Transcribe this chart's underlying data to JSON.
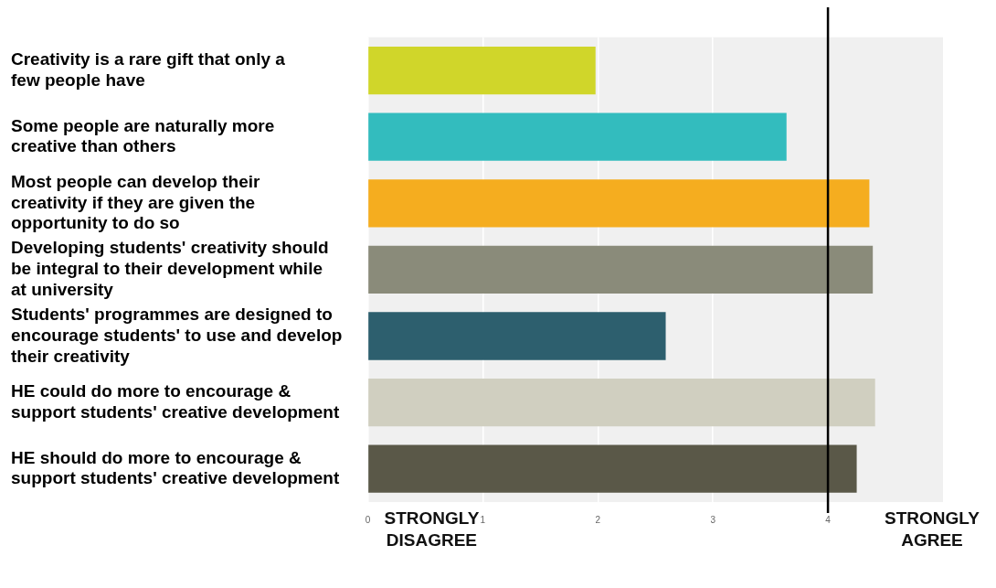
{
  "chart_data": {
    "type": "bar",
    "orientation": "horizontal",
    "categories": [
      "Creativity is a rare gift that only a few people have",
      "Some people are naturally more creative than others",
      "Most people can develop their creativity if they are given the opportunity to do so",
      "Developing students' creativity should be integral to their development while at university",
      "Students' programmes are designed to encourage students' to use and develop their creativity",
      "HE could do more to encourage & support students' creative development",
      "HE should do more to encourage & support students' creative development"
    ],
    "values": [
      1.98,
      3.64,
      4.36,
      4.39,
      2.59,
      4.41,
      4.25
    ],
    "colors": [
      "#d0d62a",
      "#33bcbe",
      "#f5ad1f",
      "#8a8b7a",
      "#2d5f6e",
      "#d0cfc0",
      "#5a5848"
    ],
    "xlim": [
      0,
      5
    ],
    "xticks": [
      0,
      1,
      2,
      3,
      4
    ],
    "grid": "x",
    "legend": false,
    "ref_lines": [
      {
        "axis": "x",
        "value": 4,
        "color": "#000000"
      }
    ],
    "annotations": [
      "STRONGLY DISAGREE",
      "STRONGLY AGREE"
    ]
  }
}
